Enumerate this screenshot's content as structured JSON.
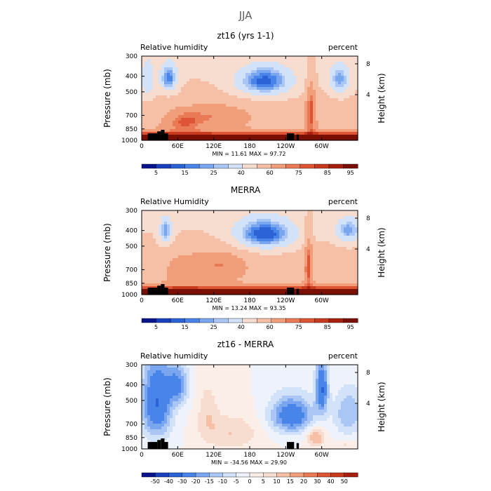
{
  "page": {
    "title": "JJA"
  },
  "panels": [
    {
      "title": "zt16 (yrs 1-1)",
      "left_label": "Relative humidity",
      "right_label": "percent",
      "stats": "MIN =   11.61   MAX =   97.72",
      "colorbar": {
        "labels": [
          "5",
          "15",
          "25",
          "40",
          "60",
          "75",
          "85",
          "95"
        ]
      },
      "chart_data": {
        "type": "heatmap",
        "variable": "Relative humidity",
        "units": "percent",
        "min": 11.61,
        "max": 97.72,
        "x_ticks": [
          "0",
          "60E",
          "120E",
          "180",
          "120W",
          "60W"
        ],
        "y_left": {
          "label": "Pressure (mb)",
          "ticks": [
            "300",
            "400",
            "500",
            "700",
            "850",
            "1000"
          ]
        },
        "y_right": {
          "label": "Height (km)",
          "ticks": [
            "8",
            "4"
          ]
        },
        "features": {
          "dry_pools_midlevel": [
            {
              "lon_center": 45,
              "pressure_center": 420,
              "value": 15
            },
            {
              "lon_center": 205,
              "pressure_center": 430,
              "value": 15
            },
            {
              "lon_center": 330,
              "pressure_center": 420,
              "value": 20
            }
          ],
          "boundary_layer_moist_band": {
            "pressure_range": [
              850,
              1000
            ],
            "value": 85
          },
          "moist_columns": [
            {
              "lon_center": 280,
              "value": 75
            }
          ]
        }
      }
    },
    {
      "title": "MERRA",
      "left_label": "Relative Humidity",
      "right_label": "percent",
      "stats": "MIN =   13.24   MAX =   93.35",
      "colorbar": {
        "labels": [
          "5",
          "15",
          "25",
          "40",
          "60",
          "75",
          "85",
          "95"
        ]
      },
      "chart_data": {
        "type": "heatmap",
        "variable": "Relative Humidity",
        "units": "percent",
        "min": 13.24,
        "max": 93.35,
        "x_ticks": [
          "0",
          "60E",
          "120E",
          "180",
          "120W",
          "60W"
        ],
        "y_left": {
          "label": "Pressure (mb)",
          "ticks": [
            "300",
            "400",
            "500",
            "700",
            "850",
            "1000"
          ]
        },
        "y_right": {
          "label": "Height (km)",
          "ticks": [
            "8",
            "4"
          ]
        },
        "features": {
          "dry_pools_midlevel": [
            {
              "lon_center": 40,
              "pressure_center": 400,
              "value": 20
            },
            {
              "lon_center": 205,
              "pressure_center": 420,
              "value": 15
            },
            {
              "lon_center": 345,
              "pressure_center": 400,
              "value": 25
            }
          ],
          "boundary_layer_moist_band": {
            "pressure_range": [
              850,
              1000
            ],
            "value": 85
          },
          "moist_columns": [
            {
              "lon_center": 280,
              "value": 75
            }
          ]
        }
      }
    },
    {
      "title": "zt16 - MERRA",
      "left_label": "Relative humidity",
      "right_label": "percent",
      "stats": "MIN =  -34.56   MAX =   29.90",
      "colorbar": {
        "labels": [
          "-50",
          "-40",
          "-30",
          "-20",
          "-15",
          "-10",
          "-5",
          "0",
          "5",
          "10",
          "15",
          "20",
          "30",
          "40",
          "50"
        ]
      },
      "chart_data": {
        "type": "heatmap",
        "variable": "Relative humidity",
        "units": "percent",
        "min": -34.56,
        "max": 29.9,
        "x_ticks": [
          "0",
          "60E",
          "120E",
          "180",
          "120W",
          "60W"
        ],
        "y_left": {
          "label": "Pressure (mb)",
          "ticks": [
            "300",
            "400",
            "500",
            "700",
            "850",
            "1000"
          ]
        },
        "y_right": {
          "label": "Height (km)",
          "ticks": [
            "8",
            "4"
          ]
        },
        "features": {
          "negative_regions": [
            {
              "lon_center": 25,
              "pressure_center": 500,
              "value": -30
            },
            {
              "lon_center": 245,
              "pressure_center": 620,
              "value": -25
            },
            {
              "lon_center": 300,
              "pressure_center": 400,
              "value": -30
            }
          ],
          "positive_regions": [
            {
              "lon_center": 150,
              "pressure_center": 800,
              "value": 10
            },
            {
              "lon_center": 290,
              "pressure_center": 850,
              "value": 15
            }
          ]
        }
      }
    }
  ],
  "palettes": {
    "rh": [
      "#08148c",
      "#1a3fbf",
      "#2b62d6",
      "#4985e8",
      "#7aa6f0",
      "#a9c6f5",
      "#d2e2f8",
      "#f7ddd0",
      "#f6c0a6",
      "#f19e7a",
      "#e97a55",
      "#dd5535",
      "#c73a1e",
      "#a8200f",
      "#7a1005"
    ],
    "diff": [
      "#08148c",
      "#1a3fbf",
      "#2b62d6",
      "#4985e8",
      "#7aa6f0",
      "#a9c6f5",
      "#d2e2f8",
      "#eef3fb",
      "#fbeee6",
      "#f7ddd0",
      "#f6c0a6",
      "#f19e7a",
      "#e97a55",
      "#dd5535",
      "#c73a1e",
      "#a8200f"
    ]
  }
}
